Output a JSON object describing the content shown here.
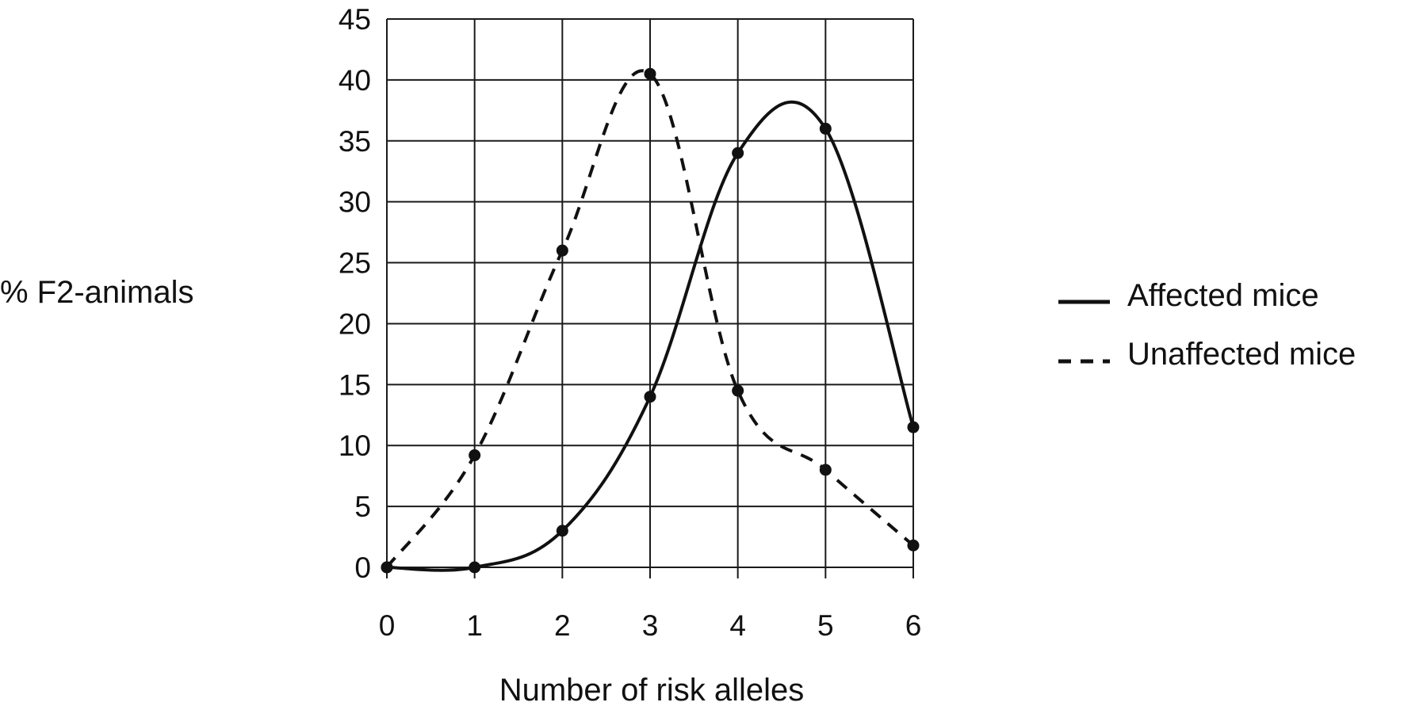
{
  "chart_data": {
    "type": "line",
    "title": "",
    "xlabel": "Number of risk alleles",
    "ylabel": "% F2-animals",
    "x": [
      0,
      1,
      2,
      3,
      4,
      5,
      6
    ],
    "xlim": [
      0,
      6
    ],
    "ylim": [
      0,
      45
    ],
    "y_ticks": [
      0,
      5,
      10,
      15,
      20,
      25,
      30,
      35,
      40,
      45
    ],
    "grid": true,
    "legend_position": "right",
    "series": [
      {
        "name": "Affected mice",
        "style": "solid",
        "values": [
          0,
          0,
          3,
          14,
          34,
          36,
          11.5
        ]
      },
      {
        "name": "Unaffected mice",
        "style": "dashed",
        "values": [
          0,
          9.2,
          26,
          40.5,
          14.5,
          8,
          1.8
        ]
      }
    ],
    "colors": {
      "line": "#111111",
      "grid": "#1a1a1a",
      "background": "#ffffff"
    }
  }
}
